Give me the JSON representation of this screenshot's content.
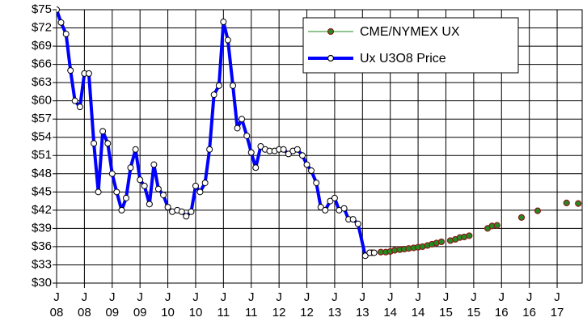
{
  "chart_data": {
    "type": "line",
    "ylim": [
      30,
      75
    ],
    "yticks": [
      {
        "value": 30,
        "label": "$30"
      },
      {
        "value": 33,
        "label": "$33"
      },
      {
        "value": 36,
        "label": "$36"
      },
      {
        "value": 39,
        "label": "$39"
      },
      {
        "value": 42,
        "label": "$42"
      },
      {
        "value": 45,
        "label": "$45"
      },
      {
        "value": 48,
        "label": "$48"
      },
      {
        "value": 51,
        "label": "$51"
      },
      {
        "value": 54,
        "label": "$54"
      },
      {
        "value": 57,
        "label": "$57"
      },
      {
        "value": 60,
        "label": "$60"
      },
      {
        "value": 63,
        "label": "$63"
      },
      {
        "value": 66,
        "label": "$66"
      },
      {
        "value": 69,
        "label": "$69"
      },
      {
        "value": 72,
        "label": "$72"
      },
      {
        "value": 75,
        "label": "$75"
      }
    ],
    "xlim": [
      8,
      17.45
    ],
    "xticks": [
      {
        "value": 8,
        "label": "J\n08"
      },
      {
        "value": 8.5,
        "label": "J\n08"
      },
      {
        "value": 9,
        "label": "J\n09"
      },
      {
        "value": 9.5,
        "label": "J\n09"
      },
      {
        "value": 10,
        "label": "J\n10"
      },
      {
        "value": 10.5,
        "label": "J\n10"
      },
      {
        "value": 11,
        "label": "J\n11"
      },
      {
        "value": 11.5,
        "label": "J\n11"
      },
      {
        "value": 12,
        "label": "J\n12"
      },
      {
        "value": 12.5,
        "label": "J\n12"
      },
      {
        "value": 13,
        "label": "J\n13"
      },
      {
        "value": 13.5,
        "label": "J\n13"
      },
      {
        "value": 14,
        "label": "J\n14"
      },
      {
        "value": 14.5,
        "label": "J\n14"
      },
      {
        "value": 15,
        "label": "J\n15"
      },
      {
        "value": 15.5,
        "label": "J\n15"
      },
      {
        "value": 16,
        "label": "J\n16"
      },
      {
        "value": 16.5,
        "label": "J\n16"
      },
      {
        "value": 17,
        "label": "J\n17"
      }
    ],
    "grid": true,
    "legend": "top-right",
    "series": [
      {
        "name": "CME/NYMEX UX",
        "color": "#228b22",
        "marker_edge": "#8b1a1a",
        "line_width": 1,
        "style": "dot",
        "x": [
          13.67,
          13.83,
          13.92,
          14.0,
          14.08,
          14.17,
          14.25,
          14.33,
          14.42,
          14.5,
          14.58,
          14.67,
          14.75,
          14.83,
          14.92,
          15.08,
          15.17,
          15.25,
          15.33,
          15.42,
          15.75,
          15.83,
          15.92,
          16.36,
          16.65,
          17.17,
          17.38
        ],
        "values": [
          35,
          35.1,
          35.1,
          35.2,
          35.4,
          35.5,
          35.6,
          35.7,
          35.8,
          35.9,
          36.0,
          36.2,
          36.4,
          36.6,
          36.8,
          37.0,
          37.2,
          37.5,
          37.6,
          37.8,
          39.0,
          39.4,
          39.5,
          40.8,
          41.9,
          43.2,
          43.1
        ]
      },
      {
        "name": "Ux U3O8 Price",
        "color": "#0000ff",
        "marker_edge": "#000000",
        "line_width": 4,
        "style": "line",
        "x": [
          8.0,
          8.08,
          8.17,
          8.25,
          8.33,
          8.42,
          8.5,
          8.58,
          8.67,
          8.75,
          8.83,
          8.92,
          9.0,
          9.08,
          9.17,
          9.25,
          9.33,
          9.42,
          9.5,
          9.58,
          9.67,
          9.75,
          9.83,
          9.92,
          10.0,
          10.08,
          10.17,
          10.25,
          10.33,
          10.42,
          10.5,
          10.58,
          10.67,
          10.75,
          10.83,
          10.92,
          11.0,
          11.08,
          11.17,
          11.25,
          11.33,
          11.42,
          11.5,
          11.58,
          11.67,
          11.75,
          11.83,
          11.92,
          12.0,
          12.08,
          12.17,
          12.25,
          12.33,
          12.42,
          12.5,
          12.58,
          12.67,
          12.75,
          12.83,
          12.92,
          13.0,
          13.08,
          13.17,
          13.25,
          13.33,
          13.42,
          13.55,
          13.63,
          13.71
        ],
        "values": [
          75,
          72.9,
          71,
          65,
          60,
          59,
          64.5,
          64.5,
          53,
          45,
          55,
          53,
          48,
          45,
          42,
          44,
          49,
          52,
          47,
          46,
          43,
          49.5,
          45.5,
          44.5,
          42.5,
          41.75,
          42,
          41.75,
          41,
          41.75,
          46,
          45,
          46.5,
          52,
          61,
          62.5,
          73,
          70,
          62.5,
          55.5,
          57,
          54.25,
          51.5,
          49,
          52.5,
          52,
          51.75,
          51.75,
          52,
          52,
          51.25,
          51.75,
          52,
          51,
          49.5,
          48.5,
          46.5,
          42.5,
          42,
          43.5,
          44,
          42,
          42.3,
          40.5,
          40.5,
          39.75,
          34.5,
          35,
          35
        ]
      }
    ]
  }
}
